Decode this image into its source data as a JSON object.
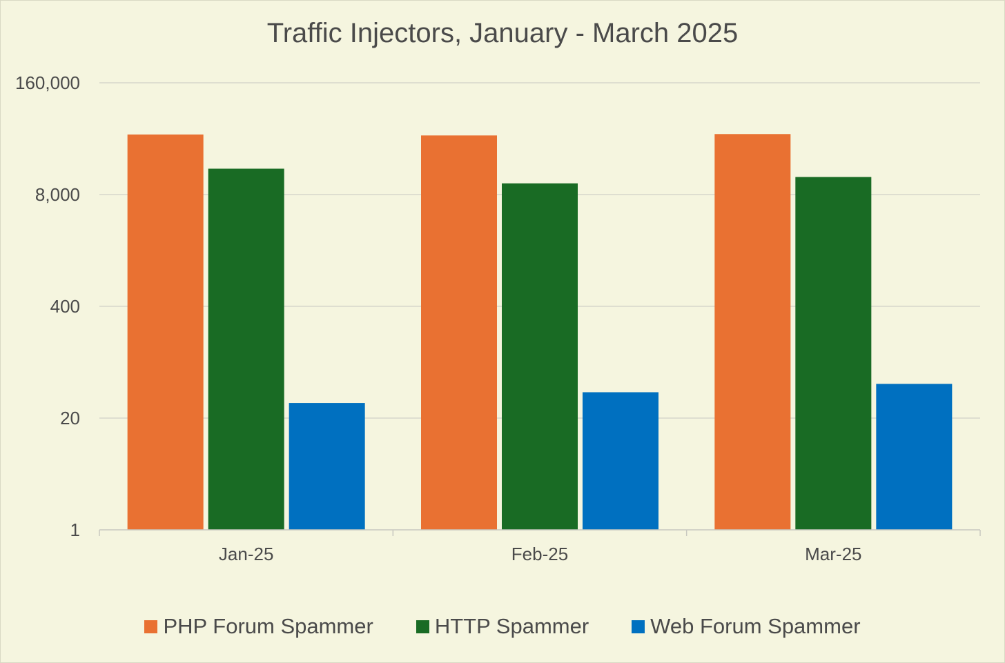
{
  "chart_data": {
    "type": "bar",
    "title": "Traffic Injectors, January - March 2025",
    "y_scale": "log",
    "ylim": [
      1,
      160000
    ],
    "y_ticks": [
      {
        "value": 1,
        "label": "1"
      },
      {
        "value": 20,
        "label": "20"
      },
      {
        "value": 400,
        "label": "400"
      },
      {
        "value": 8000,
        "label": "8,000"
      },
      {
        "value": 160000,
        "label": "160,000"
      }
    ],
    "grid": true,
    "legend_position": "bottom",
    "categories": [
      "Jan-25",
      "Feb-25",
      "Mar-25"
    ],
    "series": [
      {
        "name": "PHP Forum Spammer",
        "color": "#e97132",
        "values": [
          40000,
          39000,
          40500
        ]
      },
      {
        "name": "HTTP Spammer",
        "color": "#196b24",
        "values": [
          16000,
          10800,
          12800
        ]
      },
      {
        "name": "Web Forum Spammer",
        "color": "#0070c0",
        "values": [
          30,
          40,
          50
        ]
      }
    ]
  }
}
